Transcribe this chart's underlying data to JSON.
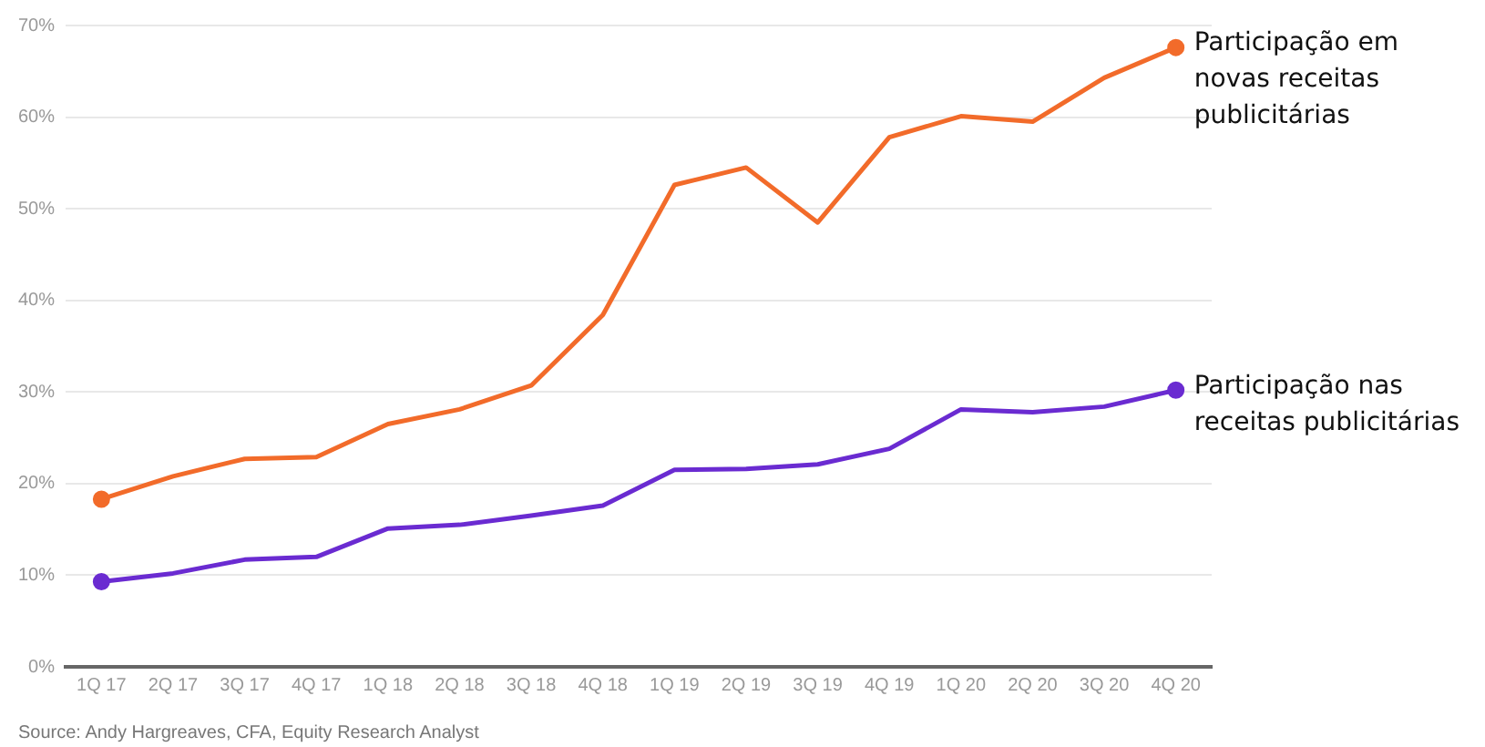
{
  "chart_data": {
    "type": "line",
    "categories": [
      "1Q 17",
      "2Q 17",
      "3Q 17",
      "4Q 17",
      "1Q 18",
      "2Q 18",
      "3Q 18",
      "4Q 18",
      "1Q 19",
      "2Q 19",
      "3Q 19",
      "4Q 19",
      "1Q 20",
      "2Q 20",
      "3Q 20",
      "4Q 20"
    ],
    "series": [
      {
        "name": "Participação em novas receitas publicitárias",
        "color": "#f26b2a",
        "values": [
          18.3,
          20.8,
          22.7,
          22.9,
          26.5,
          28.1,
          30.7,
          38.4,
          52.6,
          54.5,
          48.5,
          57.8,
          60.1,
          59.5,
          64.3,
          67.6
        ]
      },
      {
        "name": "Participação nas receitas publicitárias",
        "color": "#6a2bd1",
        "values": [
          9.3,
          10.2,
          11.7,
          12.0,
          15.1,
          15.5,
          16.5,
          17.6,
          21.5,
          21.6,
          22.1,
          23.8,
          28.1,
          27.8,
          28.4,
          30.2
        ]
      }
    ],
    "ylim": [
      0,
      70
    ],
    "yticks": [
      {
        "value": 0,
        "label": "0%"
      },
      {
        "value": 10,
        "label": "10%"
      },
      {
        "value": 20,
        "label": "20%"
      },
      {
        "value": 30,
        "label": "30%"
      },
      {
        "value": 40,
        "label": "40%"
      },
      {
        "value": 50,
        "label": "50%"
      },
      {
        "value": 60,
        "label": "60%"
      },
      {
        "value": 70,
        "label": "70%"
      }
    ],
    "grid": "y",
    "legend": false,
    "line_style": "solid",
    "annotations": [
      "Source: Andy Hargreaves, CFA, Equity Research Analyst"
    ]
  }
}
